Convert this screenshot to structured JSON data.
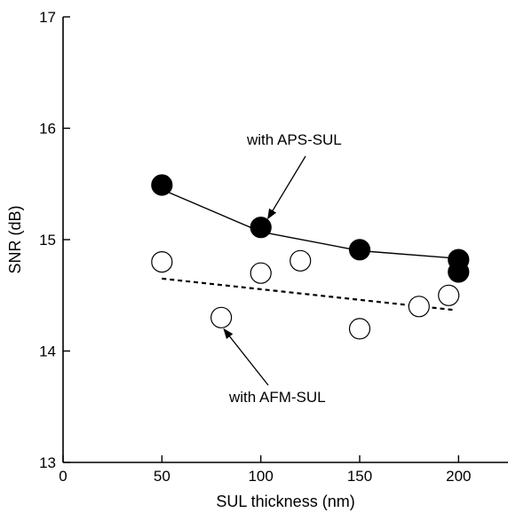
{
  "chart_data": {
    "type": "scatter",
    "title": "",
    "xlabel": "SUL thickness (nm)",
    "ylabel": "SNR (dB)",
    "xlim": [
      0,
      225
    ],
    "ylim": [
      13,
      17
    ],
    "x_ticks": [
      0,
      50,
      100,
      150,
      200
    ],
    "x_tick_labels": [
      "0",
      "50",
      "100",
      "150",
      "200"
    ],
    "y_ticks": [
      13,
      14,
      15,
      16,
      17
    ],
    "y_tick_labels": [
      "13",
      "14",
      "15",
      "16",
      "17"
    ],
    "grid": false,
    "legend": "none",
    "series": [
      {
        "marker": "filled-circle",
        "color": "#000000",
        "points": [
          {
            "x": 50,
            "y": 15.49
          },
          {
            "x": 100,
            "y": 15.11
          },
          {
            "x": 150,
            "y": 14.91
          },
          {
            "x": 200,
            "y": 14.82
          },
          {
            "x": 200,
            "y": 14.71
          }
        ],
        "trend_line": {
          "style": "solid",
          "x": [
            50,
            100,
            150,
            200
          ],
          "y": [
            15.45,
            15.07,
            14.9,
            14.83
          ]
        }
      },
      {
        "marker": "open-circle",
        "color": "#000000",
        "points": [
          {
            "x": 50,
            "y": 14.8
          },
          {
            "x": 80,
            "y": 14.3
          },
          {
            "x": 100,
            "y": 14.7
          },
          {
            "x": 120,
            "y": 14.81
          },
          {
            "x": 150,
            "y": 14.2
          },
          {
            "x": 180,
            "y": 14.4
          },
          {
            "x": 195,
            "y": 14.5
          }
        ],
        "trend_line": {
          "style": "dashed",
          "x": [
            50,
            197
          ],
          "y": [
            14.65,
            14.37
          ]
        }
      }
    ],
    "annotations": [
      {
        "text": "with APS-SUL",
        "arrow_to": {
          "x": 100,
          "y": 15.11
        }
      },
      {
        "text": "with AFM-SUL",
        "arrow_to": {
          "x": 80,
          "y": 14.3
        }
      }
    ]
  }
}
